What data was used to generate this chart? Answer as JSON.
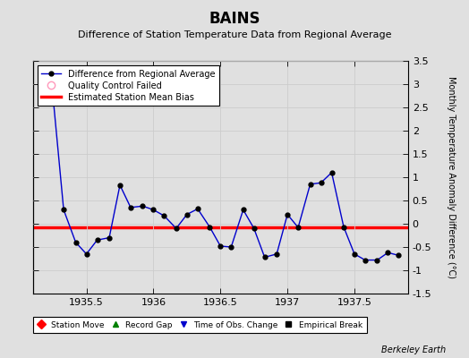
{
  "title": "BAINS",
  "subtitle": "Difference of Station Temperature Data from Regional Average",
  "ylabel": "Monthly Temperature Anomaly Difference (°C)",
  "xlabel_ticks": [
    1935.5,
    1936,
    1936.5,
    1937,
    1937.5
  ],
  "ylim": [
    -1.5,
    3.5
  ],
  "xlim": [
    1935.1,
    1937.9
  ],
  "yticks": [
    -1.5,
    -1.0,
    -0.5,
    0.0,
    0.5,
    1.0,
    1.5,
    2.0,
    2.5,
    3.0,
    3.5
  ],
  "bias_value": -0.07,
  "line_color": "#0000cc",
  "marker_color": "#000000",
  "bias_color": "#ff0000",
  "background_color": "#e0e0e0",
  "data_x": [
    1935.25,
    1935.33,
    1935.42,
    1935.5,
    1935.58,
    1935.67,
    1935.75,
    1935.83,
    1935.92,
    1936.0,
    1936.08,
    1936.17,
    1936.25,
    1936.33,
    1936.42,
    1936.5,
    1936.58,
    1936.67,
    1936.75,
    1936.83,
    1936.92,
    1937.0,
    1937.08,
    1937.17,
    1937.25,
    1937.33,
    1937.42,
    1937.5,
    1937.58,
    1937.67,
    1937.75,
    1937.83
  ],
  "data_y": [
    2.75,
    0.3,
    -0.4,
    -0.65,
    -0.35,
    -0.3,
    0.83,
    0.35,
    0.38,
    0.3,
    0.17,
    -0.1,
    0.2,
    0.32,
    -0.07,
    -0.48,
    -0.5,
    0.3,
    -0.1,
    -0.72,
    -0.65,
    0.2,
    -0.08,
    0.85,
    0.88,
    1.1,
    -0.07,
    -0.65,
    -0.78,
    -0.78,
    -0.62,
    -0.68
  ],
  "legend_line_label": "Difference from Regional Average",
  "legend_qc_label": "Quality Control Failed",
  "legend_bias_label": "Estimated Station Mean Bias",
  "bottom_legend_labels": [
    "Station Move",
    "Record Gap",
    "Time of Obs. Change",
    "Empirical Break"
  ],
  "bottom_legend_colors": [
    "#ff0000",
    "#008000",
    "#0000cc",
    "#000000"
  ],
  "bottom_legend_markers": [
    "D",
    "^",
    "v",
    "s"
  ],
  "watermark": "Berkeley Earth",
  "grid_color": "#cccccc",
  "title_fontsize": 12,
  "subtitle_fontsize": 8,
  "axis_fontsize": 8,
  "ylabel_fontsize": 7
}
